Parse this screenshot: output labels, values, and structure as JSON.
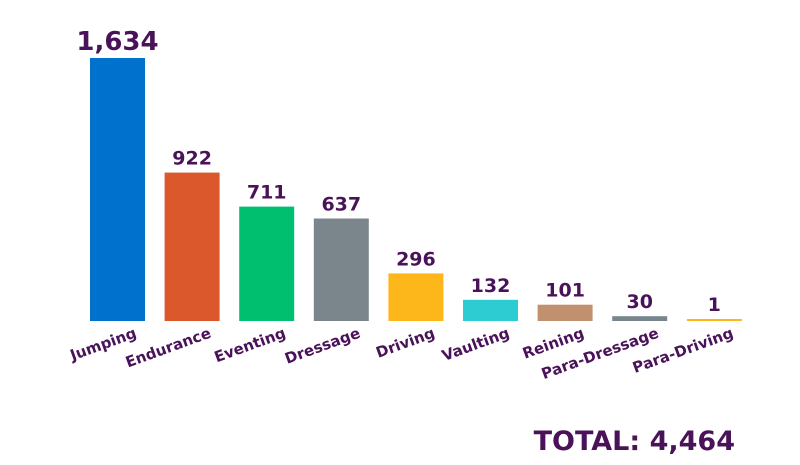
{
  "chart_data": {
    "type": "bar",
    "title": "",
    "xlabel": "",
    "ylabel": "",
    "categories": [
      "Jumping",
      "Endurance",
      "Eventing",
      "Dressage",
      "Driving",
      "Vaulting",
      "Reining",
      "Para-Dressage",
      "Para-Driving"
    ],
    "values": [
      1634,
      922,
      711,
      637,
      296,
      132,
      101,
      30,
      1
    ],
    "value_labels": [
      "1,634",
      "922",
      "711",
      "637",
      "296",
      "132",
      "101",
      "30",
      "1"
    ],
    "colors": [
      "#0072ce",
      "#db582c",
      "#00bf6f",
      "#7b868c",
      "#fdb71a",
      "#2dccd3",
      "#c0906f",
      "#77858d",
      "#fdb71a"
    ],
    "ylim": [
      0,
      1634
    ],
    "grid": false,
    "legend": "none"
  },
  "total": {
    "text": "TOTAL: 4,464"
  }
}
